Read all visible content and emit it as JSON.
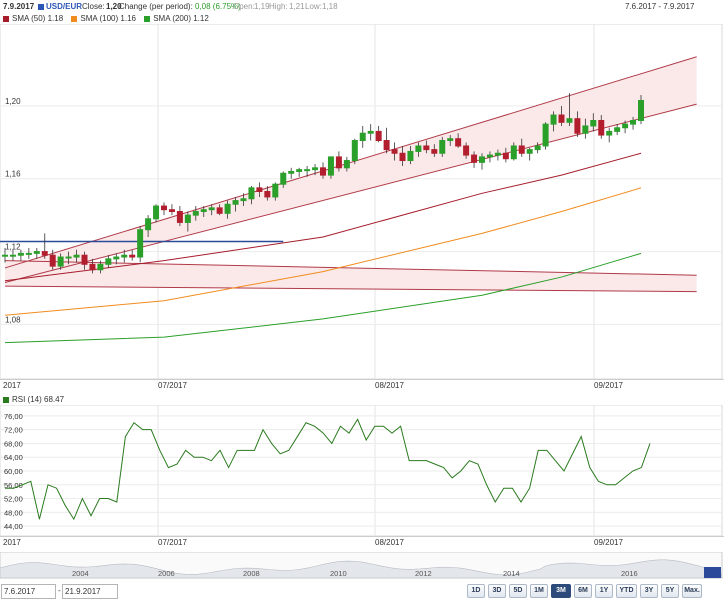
{
  "header": {
    "date": "7.9.2017",
    "symbol": "USD/EUR",
    "close_label": "Close:",
    "close": "1,20",
    "change_label": "Change (per period):",
    "change": "0,08 (6.75%)",
    "open_label": "Open:",
    "open": "1,19",
    "high_label": "High:",
    "high": "1,21",
    "low_label": "Low:",
    "low": "1,18",
    "range": "7.6.2017 - 7.9.2017",
    "symbol_color": "#2b56b5",
    "change_color": "#2a9d2a"
  },
  "legend": [
    {
      "label": "SMA (50) 1.18",
      "color": "#a61c2b"
    },
    {
      "label": "SMA (100) 1.16",
      "color": "#f08c1e"
    },
    {
      "label": "SMA (200) 1.12",
      "color": "#2aa02a"
    }
  ],
  "rsi_legend": {
    "label": "RSI (14) 68.47",
    "color": "#2a7a1e"
  },
  "date_axis": {
    "start": "2017",
    "labels": [
      "07/2017",
      "08/2017",
      "09/2017"
    ]
  },
  "navigator_axis": [
    "2004",
    "2006",
    "2008",
    "2010",
    "2012",
    "2014",
    "2016"
  ],
  "range_inputs": {
    "from": "7.6.2017",
    "to": "21.9.2017",
    "separator": "-"
  },
  "buttons": [
    "1D",
    "3D",
    "5D",
    "1M",
    "3M",
    "6M",
    "1Y",
    "YTD",
    "3Y",
    "5Y",
    "Max."
  ],
  "active_button": "3M",
  "chart_data": [
    {
      "type": "candlestick",
      "title": "USD/EUR",
      "ylim": [
        1.05,
        1.245
      ],
      "y_ticks": [
        "1,08",
        "1,12",
        "1,16",
        "1,20"
      ],
      "x_labels": [
        "2017",
        "07/2017",
        "08/2017",
        "09/2017"
      ],
      "candles": [
        {
          "o": 1.118,
          "h": 1.122,
          "l": 1.114,
          "c": 1.118
        },
        {
          "o": 1.118,
          "h": 1.121,
          "l": 1.115,
          "c": 1.118
        },
        {
          "o": 1.118,
          "h": 1.121,
          "l": 1.115,
          "c": 1.119
        },
        {
          "o": 1.119,
          "h": 1.122,
          "l": 1.116,
          "c": 1.119
        },
        {
          "o": 1.119,
          "h": 1.122,
          "l": 1.116,
          "c": 1.12
        },
        {
          "o": 1.12,
          "h": 1.13,
          "l": 1.116,
          "c": 1.118
        },
        {
          "o": 1.118,
          "h": 1.121,
          "l": 1.11,
          "c": 1.112
        },
        {
          "o": 1.112,
          "h": 1.119,
          "l": 1.11,
          "c": 1.117
        },
        {
          "o": 1.117,
          "h": 1.12,
          "l": 1.113,
          "c": 1.117
        },
        {
          "o": 1.117,
          "h": 1.121,
          "l": 1.114,
          "c": 1.118
        },
        {
          "o": 1.118,
          "h": 1.12,
          "l": 1.11,
          "c": 1.113
        },
        {
          "o": 1.113,
          "h": 1.116,
          "l": 1.108,
          "c": 1.11
        },
        {
          "o": 1.11,
          "h": 1.115,
          "l": 1.108,
          "c": 1.113
        },
        {
          "o": 1.113,
          "h": 1.118,
          "l": 1.111,
          "c": 1.116
        },
        {
          "o": 1.116,
          "h": 1.119,
          "l": 1.113,
          "c": 1.117
        },
        {
          "o": 1.117,
          "h": 1.121,
          "l": 1.114,
          "c": 1.118
        },
        {
          "o": 1.118,
          "h": 1.121,
          "l": 1.115,
          "c": 1.117
        },
        {
          "o": 1.117,
          "h": 1.134,
          "l": 1.114,
          "c": 1.132
        },
        {
          "o": 1.132,
          "h": 1.14,
          "l": 1.128,
          "c": 1.138
        },
        {
          "o": 1.138,
          "h": 1.146,
          "l": 1.136,
          "c": 1.145
        },
        {
          "o": 1.145,
          "h": 1.147,
          "l": 1.14,
          "c": 1.143
        },
        {
          "o": 1.143,
          "h": 1.146,
          "l": 1.14,
          "c": 1.142
        },
        {
          "o": 1.142,
          "h": 1.145,
          "l": 1.134,
          "c": 1.136
        },
        {
          "o": 1.136,
          "h": 1.142,
          "l": 1.131,
          "c": 1.14
        },
        {
          "o": 1.14,
          "h": 1.145,
          "l": 1.137,
          "c": 1.142
        },
        {
          "o": 1.142,
          "h": 1.145,
          "l": 1.139,
          "c": 1.143
        },
        {
          "o": 1.143,
          "h": 1.146,
          "l": 1.14,
          "c": 1.144
        },
        {
          "o": 1.144,
          "h": 1.146,
          "l": 1.14,
          "c": 1.141
        },
        {
          "o": 1.141,
          "h": 1.148,
          "l": 1.138,
          "c": 1.146
        },
        {
          "o": 1.146,
          "h": 1.15,
          "l": 1.142,
          "c": 1.148
        },
        {
          "o": 1.148,
          "h": 1.152,
          "l": 1.145,
          "c": 1.149
        },
        {
          "o": 1.149,
          "h": 1.156,
          "l": 1.146,
          "c": 1.155
        },
        {
          "o": 1.155,
          "h": 1.158,
          "l": 1.15,
          "c": 1.153
        },
        {
          "o": 1.153,
          "h": 1.156,
          "l": 1.148,
          "c": 1.15
        },
        {
          "o": 1.15,
          "h": 1.158,
          "l": 1.148,
          "c": 1.157
        },
        {
          "o": 1.157,
          "h": 1.164,
          "l": 1.155,
          "c": 1.163
        },
        {
          "o": 1.163,
          "h": 1.166,
          "l": 1.16,
          "c": 1.164
        },
        {
          "o": 1.164,
          "h": 1.166,
          "l": 1.161,
          "c": 1.165
        },
        {
          "o": 1.165,
          "h": 1.167,
          "l": 1.161,
          "c": 1.165
        },
        {
          "o": 1.165,
          "h": 1.168,
          "l": 1.162,
          "c": 1.166
        },
        {
          "o": 1.166,
          "h": 1.169,
          "l": 1.16,
          "c": 1.162
        },
        {
          "o": 1.162,
          "h": 1.172,
          "l": 1.16,
          "c": 1.172
        },
        {
          "o": 1.172,
          "h": 1.175,
          "l": 1.164,
          "c": 1.166
        },
        {
          "o": 1.166,
          "h": 1.172,
          "l": 1.164,
          "c": 1.17
        },
        {
          "o": 1.17,
          "h": 1.182,
          "l": 1.168,
          "c": 1.181
        },
        {
          "o": 1.181,
          "h": 1.189,
          "l": 1.177,
          "c": 1.185
        },
        {
          "o": 1.185,
          "h": 1.19,
          "l": 1.181,
          "c": 1.186
        },
        {
          "o": 1.186,
          "h": 1.189,
          "l": 1.18,
          "c": 1.181
        },
        {
          "o": 1.181,
          "h": 1.188,
          "l": 1.174,
          "c": 1.176
        },
        {
          "o": 1.176,
          "h": 1.18,
          "l": 1.17,
          "c": 1.174
        },
        {
          "o": 1.174,
          "h": 1.178,
          "l": 1.167,
          "c": 1.17
        },
        {
          "o": 1.17,
          "h": 1.178,
          "l": 1.168,
          "c": 1.175
        },
        {
          "o": 1.175,
          "h": 1.18,
          "l": 1.172,
          "c": 1.178
        },
        {
          "o": 1.178,
          "h": 1.181,
          "l": 1.174,
          "c": 1.176
        },
        {
          "o": 1.176,
          "h": 1.179,
          "l": 1.172,
          "c": 1.174
        },
        {
          "o": 1.174,
          "h": 1.183,
          "l": 1.172,
          "c": 1.181
        },
        {
          "o": 1.181,
          "h": 1.184,
          "l": 1.178,
          "c": 1.182
        },
        {
          "o": 1.182,
          "h": 1.185,
          "l": 1.177,
          "c": 1.178
        },
        {
          "o": 1.178,
          "h": 1.18,
          "l": 1.171,
          "c": 1.173
        },
        {
          "o": 1.173,
          "h": 1.175,
          "l": 1.166,
          "c": 1.169
        },
        {
          "o": 1.169,
          "h": 1.174,
          "l": 1.165,
          "c": 1.172
        },
        {
          "o": 1.172,
          "h": 1.175,
          "l": 1.169,
          "c": 1.173
        },
        {
          "o": 1.173,
          "h": 1.176,
          "l": 1.17,
          "c": 1.174
        },
        {
          "o": 1.174,
          "h": 1.177,
          "l": 1.169,
          "c": 1.171
        },
        {
          "o": 1.171,
          "h": 1.18,
          "l": 1.17,
          "c": 1.178
        },
        {
          "o": 1.178,
          "h": 1.182,
          "l": 1.172,
          "c": 1.174
        },
        {
          "o": 1.174,
          "h": 1.177,
          "l": 1.17,
          "c": 1.176
        },
        {
          "o": 1.176,
          "h": 1.18,
          "l": 1.174,
          "c": 1.178
        },
        {
          "o": 1.178,
          "h": 1.191,
          "l": 1.176,
          "c": 1.19
        },
        {
          "o": 1.19,
          "h": 1.197,
          "l": 1.186,
          "c": 1.195
        },
        {
          "o": 1.195,
          "h": 1.2,
          "l": 1.189,
          "c": 1.191
        },
        {
          "o": 1.191,
          "h": 1.207,
          "l": 1.189,
          "c": 1.193
        },
        {
          "o": 1.193,
          "h": 1.197,
          "l": 1.183,
          "c": 1.185
        },
        {
          "o": 1.185,
          "h": 1.193,
          "l": 1.182,
          "c": 1.189
        },
        {
          "o": 1.189,
          "h": 1.196,
          "l": 1.186,
          "c": 1.192
        },
        {
          "o": 1.192,
          "h": 1.195,
          "l": 1.182,
          "c": 1.184
        },
        {
          "o": 1.184,
          "h": 1.188,
          "l": 1.18,
          "c": 1.186
        },
        {
          "o": 1.186,
          "h": 1.19,
          "l": 1.184,
          "c": 1.188
        },
        {
          "o": 1.188,
          "h": 1.192,
          "l": 1.185,
          "c": 1.19
        },
        {
          "o": 1.19,
          "h": 1.194,
          "l": 1.187,
          "c": 1.192
        },
        {
          "o": 1.192,
          "h": 1.206,
          "l": 1.19,
          "c": 1.203
        }
      ],
      "series": [
        {
          "name": "SMA (50)",
          "color": "#a61c2b",
          "values": [
            [
              0,
              1.104
            ],
            [
              20,
              1.115
            ],
            [
              40,
              1.128
            ],
            [
              60,
              1.152
            ],
            [
              70,
              1.162
            ],
            [
              80,
              1.174
            ]
          ]
        },
        {
          "name": "SMA (100)",
          "color": "#f08c1e",
          "values": [
            [
              0,
              1.085
            ],
            [
              20,
              1.093
            ],
            [
              40,
              1.109
            ],
            [
              60,
              1.13
            ],
            [
              70,
              1.142
            ],
            [
              80,
              1.155
            ]
          ]
        },
        {
          "name": "SMA (200)",
          "color": "#2aa02a",
          "values": [
            [
              0,
              1.07
            ],
            [
              20,
              1.073
            ],
            [
              40,
              1.083
            ],
            [
              60,
              1.096
            ],
            [
              70,
              1.106
            ],
            [
              80,
              1.119
            ]
          ]
        }
      ],
      "channels": [
        {
          "start": [
            0,
            1.111
          ],
          "end": [
            87,
            1.227
          ],
          "kind": "upper"
        },
        {
          "start": [
            0,
            1.103
          ],
          "end": [
            87,
            1.201
          ],
          "kind": "lower"
        },
        {
          "start": [
            0,
            1.115
          ],
          "end": [
            87,
            1.107
          ],
          "kind": "flat-top"
        },
        {
          "start": [
            0,
            1.101
          ],
          "end": [
            87,
            1.098
          ],
          "kind": "flat-bottom"
        }
      ],
      "hline": {
        "y": 1.1255,
        "x_from": 0,
        "x_to": 35,
        "color": "#2c4a9a"
      }
    },
    {
      "type": "line",
      "title": "RSI (14) 68.47",
      "ylim": [
        42,
        78
      ],
      "y_ticks": [
        "44,00",
        "48,00",
        "52,00",
        "56,00",
        "60,00",
        "64,00",
        "68,00",
        "72,00",
        "76,00"
      ],
      "series": [
        {
          "name": "RSI (14) 68.47",
          "color": "#2a7a1e",
          "values": [
            55,
            55,
            56,
            57,
            46,
            56,
            55,
            50,
            46,
            52,
            47,
            52,
            52,
            51,
            70,
            74,
            72,
            72,
            66,
            61,
            62,
            66,
            64,
            64,
            63,
            66,
            61,
            66,
            66,
            66,
            72,
            68,
            65,
            66,
            70,
            74,
            73,
            71,
            68,
            73,
            71,
            75,
            69,
            73,
            73,
            71,
            73,
            63,
            63,
            63,
            62,
            61,
            58,
            60,
            63,
            62,
            56,
            51,
            55,
            55,
            51,
            55,
            66,
            66,
            63,
            60,
            65,
            70,
            61,
            57,
            56,
            56,
            58,
            60,
            61,
            68
          ]
        }
      ]
    }
  ]
}
